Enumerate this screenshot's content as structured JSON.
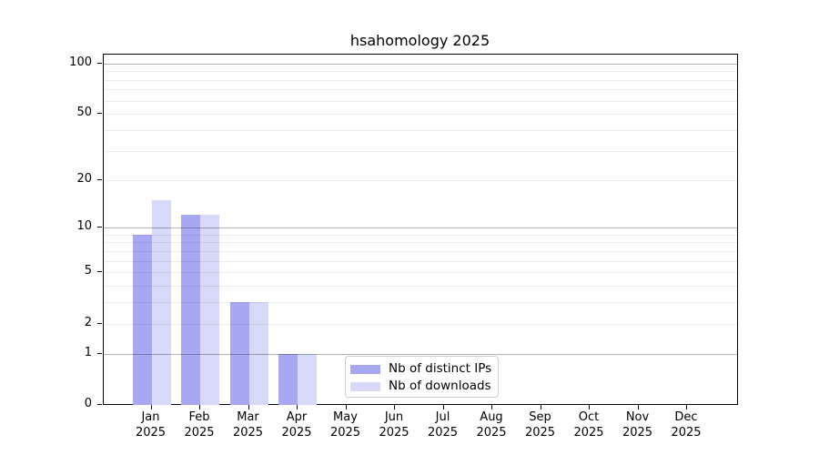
{
  "title": "hsahomology 2025",
  "chart_data": {
    "type": "bar",
    "title": "hsahomology 2025",
    "categories": [
      "Jan 2025",
      "Feb 2025",
      "Mar 2025",
      "Apr 2025",
      "May 2025",
      "Jun 2025",
      "Jul 2025",
      "Aug 2025",
      "Sep 2025",
      "Oct 2025",
      "Nov 2025",
      "Dec 2025"
    ],
    "series": [
      {
        "name": "Nb of distinct IPs",
        "color": "#a8a8f2",
        "values": [
          9,
          12,
          3,
          1,
          0,
          0,
          0,
          0,
          0,
          0,
          0,
          0
        ]
      },
      {
        "name": "Nb of downloads",
        "color": "#d8d8f8",
        "values": [
          15,
          12,
          3,
          1,
          0,
          0,
          0,
          0,
          0,
          0,
          0,
          0
        ]
      }
    ],
    "xlabel": "",
    "ylabel": "",
    "yscale": "log1p",
    "ylim": [
      0,
      113
    ],
    "yticks": [
      0,
      1,
      2,
      5,
      10,
      20,
      50,
      100
    ],
    "major_gridlines": [
      1,
      10,
      100
    ],
    "minor_gridlines": [
      2,
      3,
      4,
      5,
      6,
      7,
      8,
      9,
      20,
      30,
      40,
      50,
      60,
      70,
      80,
      90
    ],
    "grid": "on",
    "grid_above_bars": true,
    "legend_position": "lower center"
  },
  "legend": {
    "items": [
      {
        "label": "Nb of distinct IPs",
        "color": "#a8a8f2"
      },
      {
        "label": "Nb of downloads",
        "color": "#d8d8f8"
      }
    ]
  }
}
